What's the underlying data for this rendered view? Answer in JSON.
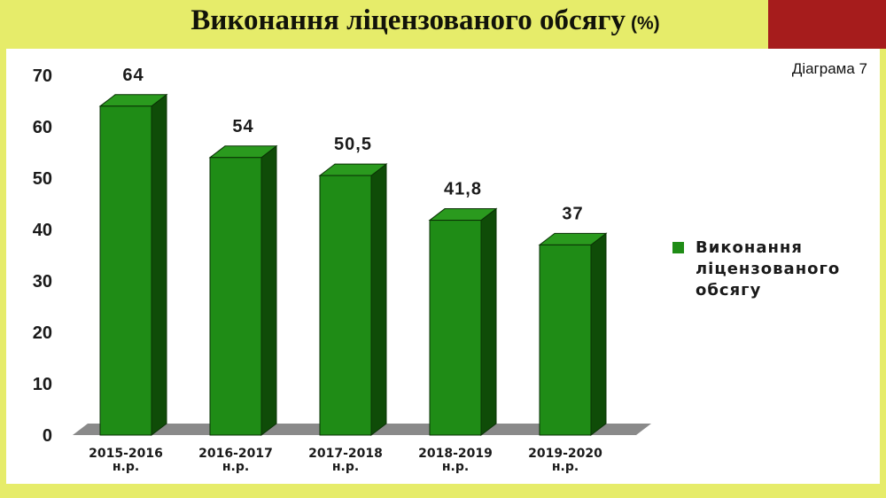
{
  "header": {
    "title": "Виконання ліцензованого обсягу",
    "unit": "(%)",
    "accent_color": "#a61c1c",
    "background_color": "#e6ec6a"
  },
  "panel": {
    "diagram_label": "Діаграма 7"
  },
  "chart_data": {
    "type": "bar",
    "style": "3d",
    "categories": [
      [
        "2015-2016",
        "н.р."
      ],
      [
        "2016-2017",
        "н.р."
      ],
      [
        "2017-2018",
        "н.р."
      ],
      [
        "2018-2019",
        "н.р."
      ],
      [
        "2019-2020",
        "н.р."
      ]
    ],
    "series": [
      {
        "name": "Виконання ліцензованого обсягу",
        "values": [
          64,
          54,
          50.5,
          41.8,
          37
        ],
        "value_labels": [
          "64",
          "54",
          "50,5",
          "41,8",
          "37"
        ],
        "color": "#1f8c16"
      }
    ],
    "title": "Виконання ліцензованого обсягу (%)",
    "xlabel": "",
    "ylabel": "",
    "ylim": [
      0,
      70
    ],
    "yticks": [
      0,
      10,
      20,
      30,
      40,
      50,
      60,
      70
    ],
    "grid": false,
    "legend": "right"
  },
  "legend": {
    "label": "Виконання ліцензованого обсягу"
  }
}
